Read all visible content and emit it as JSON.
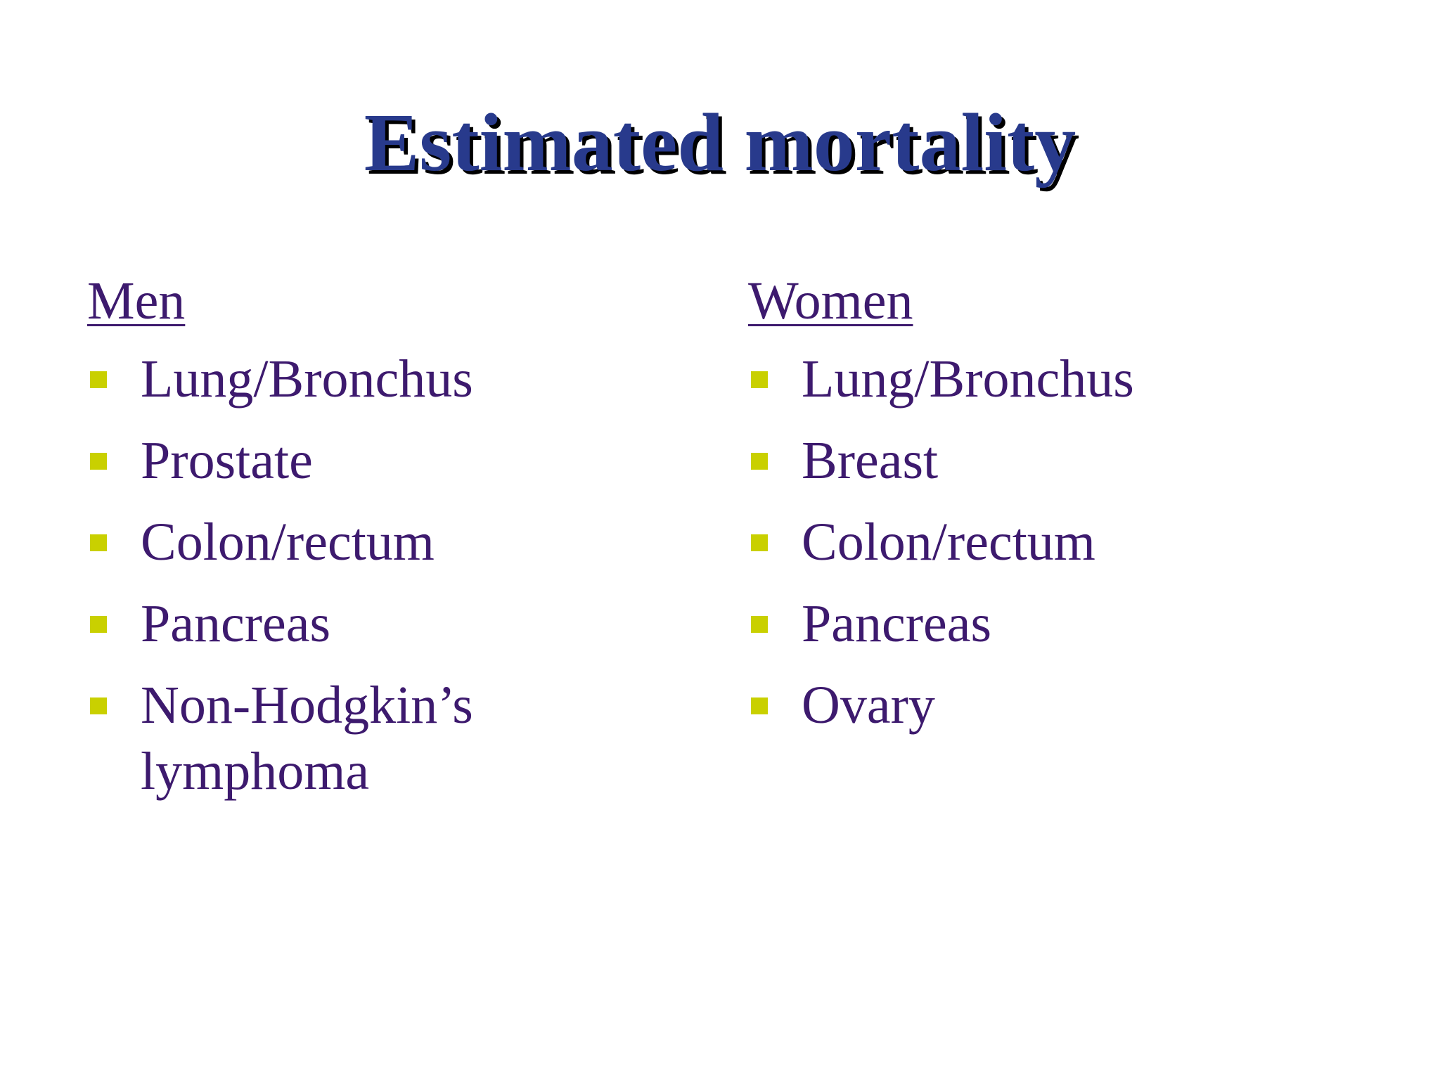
{
  "slide": {
    "title": "Estimated mortality",
    "colors": {
      "title": "#283a8c",
      "title_shadow": "#000000",
      "text": "#3d1a6e",
      "bullet": "#c9d000"
    },
    "columns": [
      {
        "heading": "Men",
        "items": [
          "Lung/Bronchus",
          "Prostate",
          "Colon/rectum",
          "Pancreas",
          "Non-Hodgkin’s lymphoma"
        ]
      },
      {
        "heading": "Women",
        "items": [
          "Lung/Bronchus",
          "Breast",
          "Colon/rectum",
          "Pancreas",
          "Ovary"
        ]
      }
    ]
  }
}
